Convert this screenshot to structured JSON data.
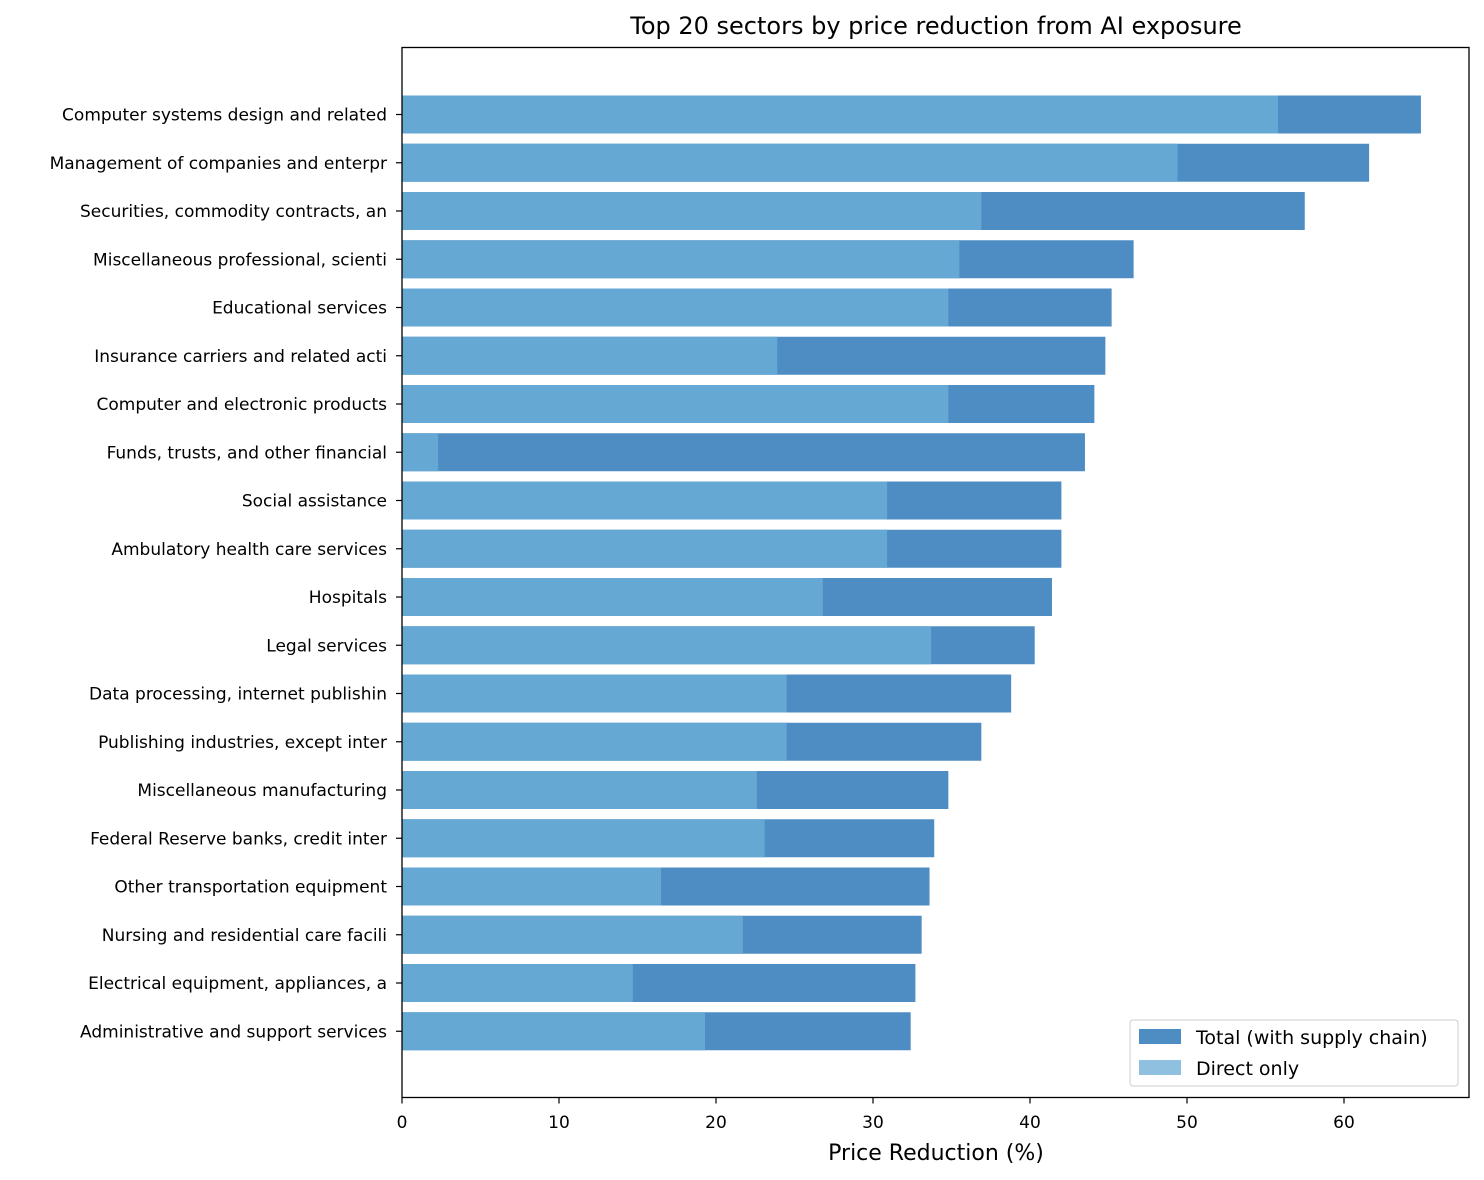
{
  "chart_data": {
    "type": "bar",
    "orientation": "horizontal",
    "title": "Top 20 sectors by price reduction from AI exposure",
    "xlabel": "Price Reduction (%)",
    "ylabel": "",
    "xlim": [
      0,
      68
    ],
    "xticks": [
      0,
      10,
      20,
      30,
      40,
      50,
      60
    ],
    "legend_position": "lower-right",
    "categories": [
      "Computer systems design and related",
      "Management of companies and enterpr",
      "Securities, commodity contracts, an",
      "Miscellaneous professional, scienti",
      "Educational services",
      "Insurance carriers and related acti",
      "Computer and electronic products",
      "Funds, trusts, and other financial ",
      "Social assistance",
      "Ambulatory health care services",
      "Hospitals",
      "Legal services",
      "Data processing, internet publishin",
      "Publishing industries, except inter",
      "Miscellaneous manufacturing",
      "Federal Reserve banks, credit inter",
      "Other transportation equipment",
      "Nursing and residential care facili",
      "Electrical equipment, appliances, a",
      "Administrative and support services"
    ],
    "series": [
      {
        "name": "Total (with supply chain)",
        "color": "#4e8dc4",
        "values": [
          64.9,
          61.6,
          57.5,
          46.6,
          45.2,
          44.8,
          44.1,
          43.5,
          42.0,
          42.0,
          41.4,
          40.3,
          38.8,
          36.9,
          34.8,
          33.9,
          33.6,
          33.1,
          32.7,
          32.4
        ]
      },
      {
        "name": "Direct only",
        "color": "#66a8d4",
        "legend_color": "#8fc0e0",
        "values": [
          55.8,
          49.4,
          36.9,
          35.5,
          34.8,
          23.9,
          34.8,
          2.3,
          30.9,
          30.9,
          26.8,
          33.7,
          24.5,
          24.5,
          22.6,
          23.1,
          16.5,
          21.7,
          14.7,
          19.3
        ]
      }
    ]
  }
}
